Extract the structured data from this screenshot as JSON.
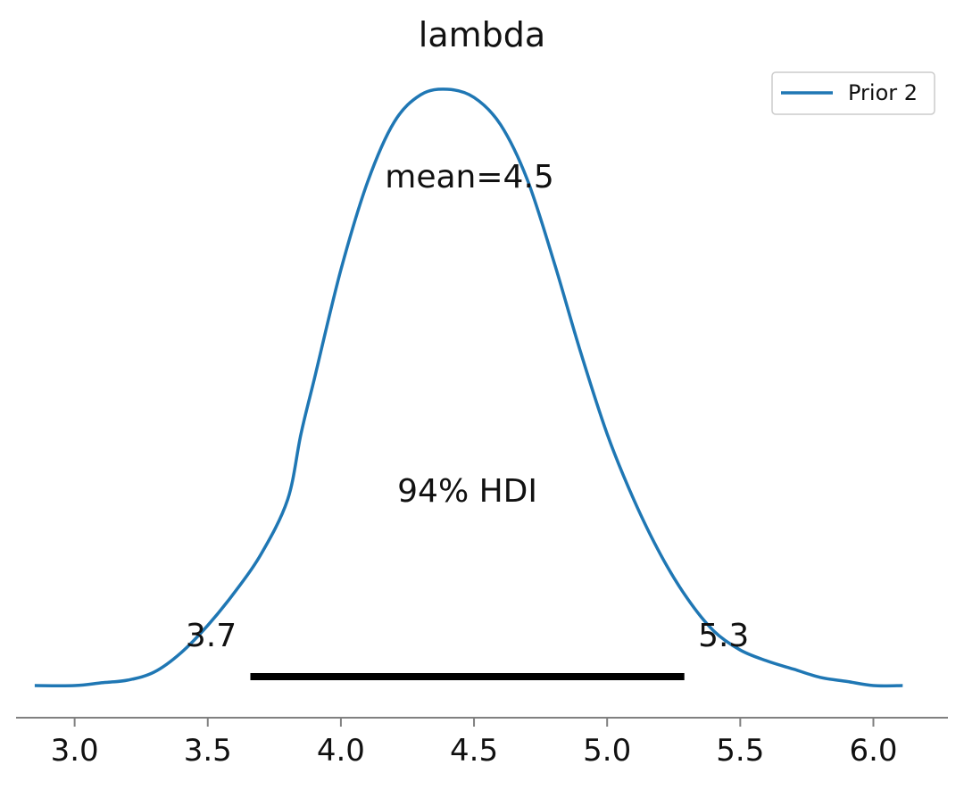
{
  "chart_data": {
    "type": "line",
    "title": "lambda",
    "xlabel": "",
    "ylabel": "",
    "xlim": [
      2.78,
      6.28
    ],
    "xticks": [
      "3.0",
      "3.5",
      "4.0",
      "4.5",
      "5.0",
      "5.5",
      "6.0"
    ],
    "grid": false,
    "legend_position": "top-right",
    "series": [
      {
        "name": "Prior 2",
        "color": "#1f77b4",
        "x": [
          2.85,
          3.0,
          3.1,
          3.2,
          3.3,
          3.4,
          3.5,
          3.6,
          3.7,
          3.8,
          3.85,
          3.9,
          4.0,
          4.1,
          4.2,
          4.3,
          4.4,
          4.5,
          4.6,
          4.7,
          4.8,
          4.9,
          5.0,
          5.1,
          5.2,
          5.3,
          5.4,
          5.5,
          5.6,
          5.7,
          5.8,
          5.9,
          6.0,
          6.11
        ],
        "y": [
          0.0,
          0.0,
          0.01,
          0.02,
          0.05,
          0.12,
          0.22,
          0.34,
          0.48,
          0.68,
          0.92,
          1.12,
          1.52,
          1.84,
          2.06,
          2.16,
          2.18,
          2.15,
          2.05,
          1.85,
          1.55,
          1.22,
          0.92,
          0.68,
          0.48,
          0.32,
          0.2,
          0.13,
          0.09,
          0.06,
          0.03,
          0.015,
          0.0,
          0.0
        ]
      }
    ],
    "annotations": {
      "mean_label": "mean=4.5",
      "mean_value": 4.5,
      "hdi_label": "94% HDI",
      "hdi_low": 3.66,
      "hdi_high": 5.29,
      "hdi_low_label": "3.7",
      "hdi_high_label": "5.3"
    }
  }
}
